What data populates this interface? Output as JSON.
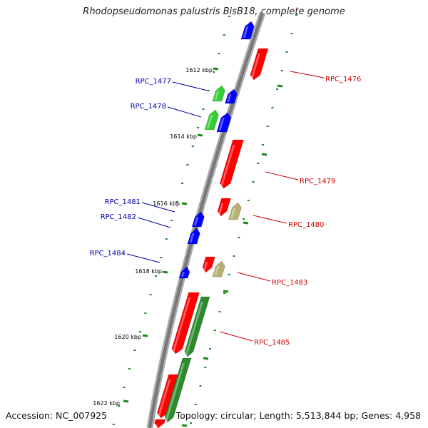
{
  "title": "Rhodopseudomonas palustris BisB18, complete genome",
  "accession_text": "Accession: NC_007925",
  "summary_text": "Topology: circular; Length: 5,513,844 bp; Genes: 4,958",
  "colors": {
    "backbone": "#888888",
    "forward_cds": "#0000ff",
    "reverse_cds": "#ff0000",
    "rna": "#33cc33",
    "other_forward": "#b8b070",
    "tick": "#1a8a1a",
    "forward_label": "#0000aa",
    "reverse_label": "#cc0000"
  },
  "ticks": [
    {
      "label": "1612 kbp"
    },
    {
      "label": "1614 kbp"
    },
    {
      "label": "1616 kbp"
    },
    {
      "label": "1618 kbp"
    },
    {
      "label": "1620 kbp"
    },
    {
      "label": "1622 kbp"
    }
  ],
  "forward_labels": [
    {
      "text": "RPC_1477"
    },
    {
      "text": "RPC_1478"
    },
    {
      "text": "RPC_1481"
    },
    {
      "text": "RPC_1482"
    },
    {
      "text": "RPC_1484"
    }
  ],
  "reverse_labels": [
    {
      "text": "RPC_1476"
    },
    {
      "text": "RPC_1479"
    },
    {
      "text": "RPC_1480"
    },
    {
      "text": "RPC_1483"
    },
    {
      "text": "RPC_1485"
    }
  ]
}
